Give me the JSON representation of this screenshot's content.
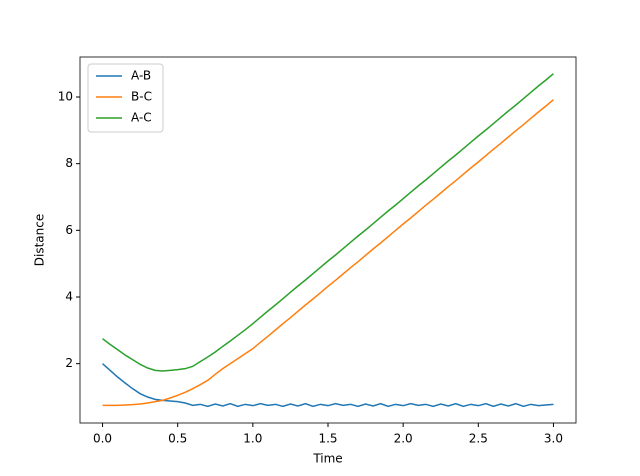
{
  "chart_data": {
    "type": "line",
    "xlabel": "Time",
    "ylabel": "Distance",
    "x": [
      0,
      0.05,
      0.1,
      0.15,
      0.2,
      0.25,
      0.3,
      0.35,
      0.4,
      0.45,
      0.5,
      0.55,
      0.6,
      0.65,
      0.7,
      0.75,
      0.8,
      0.85,
      0.9,
      0.95,
      1.0,
      1.05,
      1.1,
      1.15,
      1.2,
      1.25,
      1.3,
      1.35,
      1.4,
      1.45,
      1.5,
      1.55,
      1.6,
      1.65,
      1.7,
      1.75,
      1.8,
      1.85,
      1.9,
      1.95,
      2.0,
      2.05,
      2.1,
      2.15,
      2.2,
      2.25,
      2.3,
      2.35,
      2.4,
      2.45,
      2.5,
      2.55,
      2.6,
      2.65,
      2.7,
      2.75,
      2.8,
      2.85,
      2.9,
      2.95,
      3.0
    ],
    "series": [
      {
        "name": "A-B",
        "color": "#1f77b4",
        "values": [
          2.0,
          1.8,
          1.6,
          1.42,
          1.25,
          1.1,
          1.0,
          0.93,
          0.9,
          0.88,
          0.86,
          0.82,
          0.75,
          0.78,
          0.72,
          0.79,
          0.73,
          0.8,
          0.72,
          0.78,
          0.74,
          0.8,
          0.75,
          0.78,
          0.72,
          0.79,
          0.73,
          0.8,
          0.72,
          0.78,
          0.74,
          0.8,
          0.75,
          0.78,
          0.72,
          0.79,
          0.73,
          0.8,
          0.72,
          0.78,
          0.74,
          0.8,
          0.75,
          0.78,
          0.72,
          0.79,
          0.73,
          0.8,
          0.72,
          0.78,
          0.74,
          0.8,
          0.72,
          0.79,
          0.73,
          0.8,
          0.72,
          0.78,
          0.74,
          0.76,
          0.78
        ]
      },
      {
        "name": "B-C",
        "color": "#ff7f0e",
        "values": [
          0.75,
          0.75,
          0.75,
          0.76,
          0.77,
          0.79,
          0.82,
          0.86,
          0.9,
          0.97,
          1.05,
          1.14,
          1.25,
          1.37,
          1.5,
          1.68,
          1.85,
          2.0,
          2.15,
          2.3,
          2.45,
          2.64,
          2.82,
          3.01,
          3.2,
          3.38,
          3.57,
          3.76,
          3.94,
          4.13,
          4.32,
          4.5,
          4.69,
          4.88,
          5.06,
          5.25,
          5.44,
          5.62,
          5.81,
          6.0,
          6.19,
          6.37,
          6.56,
          6.75,
          6.93,
          7.12,
          7.31,
          7.49,
          7.68,
          7.87,
          8.05,
          8.24,
          8.43,
          8.61,
          8.8,
          8.99,
          9.17,
          9.36,
          9.55,
          9.73,
          9.92
        ]
      },
      {
        "name": "A-C",
        "color": "#2ca02c",
        "values": [
          2.75,
          2.58,
          2.42,
          2.26,
          2.12,
          1.98,
          1.87,
          1.8,
          1.78,
          1.8,
          1.82,
          1.85,
          1.92,
          2.06,
          2.2,
          2.35,
          2.52,
          2.68,
          2.85,
          3.02,
          3.2,
          3.39,
          3.58,
          3.76,
          3.95,
          4.14,
          4.33,
          4.51,
          4.7,
          4.89,
          5.08,
          5.26,
          5.45,
          5.64,
          5.83,
          6.01,
          6.2,
          6.39,
          6.58,
          6.76,
          6.95,
          7.14,
          7.33,
          7.51,
          7.7,
          7.89,
          8.08,
          8.26,
          8.45,
          8.64,
          8.83,
          9.01,
          9.2,
          9.39,
          9.58,
          9.76,
          9.95,
          10.14,
          10.33,
          10.51,
          10.7
        ]
      }
    ],
    "xlim": [
      -0.15,
      3.15
    ],
    "xticks": [
      {
        "value": 0,
        "label": "0.0"
      },
      {
        "value": 0.5,
        "label": "0.5"
      },
      {
        "value": 1,
        "label": "1.0"
      },
      {
        "value": 1.5,
        "label": "1.5"
      },
      {
        "value": 2,
        "label": "2.0"
      },
      {
        "value": 2.5,
        "label": "2.5"
      },
      {
        "value": 3,
        "label": "3.0"
      }
    ],
    "ylim": [
      0.22,
      11.2
    ],
    "yticks": [
      2,
      4,
      6,
      8,
      10
    ],
    "legend": "upper left"
  }
}
